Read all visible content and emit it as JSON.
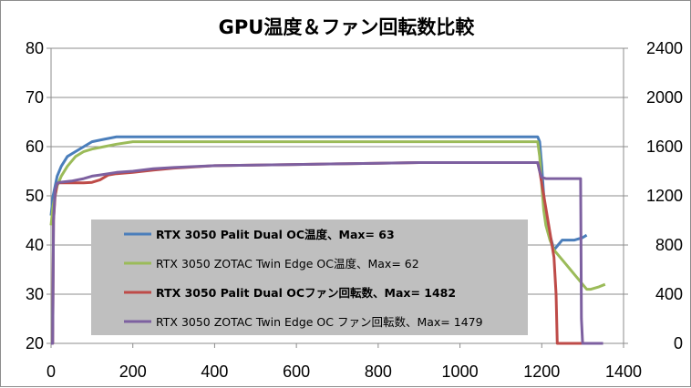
{
  "chart_data": {
    "type": "line",
    "title": "GPU温度＆ファン回転数比較",
    "xlabel": "",
    "ylabel": "",
    "y2label": "",
    "xlim": [
      0,
      1400
    ],
    "ylim": [
      20,
      80
    ],
    "y2lim": [
      0,
      2400
    ],
    "x_ticks": [
      "0",
      "200",
      "400",
      "600",
      "800",
      "1000",
      "1200",
      "1400"
    ],
    "y_ticks": [
      "20",
      "30",
      "40",
      "50",
      "60",
      "70",
      "80"
    ],
    "y2_ticks": [
      "0",
      "400",
      "800",
      "1200",
      "1600",
      "2000",
      "2400"
    ],
    "grid": "horizontal",
    "legend_position": "center-left",
    "series": [
      {
        "name": "RTX 3050 Palit Dual OC温度、Max= 63",
        "axis": "left",
        "color": "#4a7ebb",
        "bold_label": true,
        "points": [
          [
            0,
            46
          ],
          [
            5,
            50
          ],
          [
            10,
            52
          ],
          [
            15,
            54
          ],
          [
            25,
            56
          ],
          [
            40,
            58
          ],
          [
            60,
            59
          ],
          [
            80,
            60
          ],
          [
            100,
            61
          ],
          [
            130,
            61.5
          ],
          [
            160,
            62
          ],
          [
            200,
            62
          ],
          [
            300,
            62
          ],
          [
            400,
            62
          ],
          [
            500,
            62
          ],
          [
            600,
            62
          ],
          [
            700,
            62
          ],
          [
            800,
            62
          ],
          [
            900,
            62
          ],
          [
            1000,
            62
          ],
          [
            1100,
            62
          ],
          [
            1190,
            62
          ],
          [
            1195,
            61
          ],
          [
            1200,
            56
          ],
          [
            1205,
            50
          ],
          [
            1210,
            46
          ],
          [
            1220,
            42
          ],
          [
            1230,
            39
          ],
          [
            1240,
            40
          ],
          [
            1250,
            41
          ],
          [
            1260,
            41
          ],
          [
            1280,
            41
          ],
          [
            1300,
            41.5
          ],
          [
            1310,
            42
          ]
        ]
      },
      {
        "name": "RTX 3050 ZOTAC Twin Edge OC温度、Max= 62",
        "axis": "left",
        "color": "#9bbb59",
        "bold_label": false,
        "points": [
          [
            0,
            44
          ],
          [
            5,
            48
          ],
          [
            10,
            50
          ],
          [
            15,
            52
          ],
          [
            25,
            54
          ],
          [
            40,
            56
          ],
          [
            60,
            58
          ],
          [
            80,
            59
          ],
          [
            100,
            59.5
          ],
          [
            130,
            60
          ],
          [
            160,
            60.5
          ],
          [
            200,
            61
          ],
          [
            300,
            61
          ],
          [
            400,
            61
          ],
          [
            500,
            61
          ],
          [
            600,
            61
          ],
          [
            700,
            61
          ],
          [
            800,
            61
          ],
          [
            900,
            61
          ],
          [
            1000,
            61
          ],
          [
            1100,
            61
          ],
          [
            1190,
            61
          ],
          [
            1195,
            58
          ],
          [
            1200,
            52
          ],
          [
            1205,
            47
          ],
          [
            1210,
            44
          ],
          [
            1220,
            41
          ],
          [
            1230,
            39
          ],
          [
            1240,
            38
          ],
          [
            1250,
            37
          ],
          [
            1260,
            36
          ],
          [
            1270,
            35
          ],
          [
            1280,
            34
          ],
          [
            1290,
            33
          ],
          [
            1300,
            32
          ],
          [
            1310,
            31
          ],
          [
            1320,
            31
          ],
          [
            1340,
            31.5
          ],
          [
            1355,
            32
          ]
        ]
      },
      {
        "name": "RTX 3050 Palit Dual OCファン回転数、Max= 1482",
        "axis": "right",
        "color": "#be4b48",
        "bold_label": true,
        "points": [
          [
            0,
            0
          ],
          [
            4,
            0
          ],
          [
            6,
            1000
          ],
          [
            10,
            1200
          ],
          [
            15,
            1300
          ],
          [
            20,
            1305
          ],
          [
            80,
            1305
          ],
          [
            100,
            1310
          ],
          [
            120,
            1330
          ],
          [
            140,
            1370
          ],
          [
            160,
            1380
          ],
          [
            200,
            1390
          ],
          [
            250,
            1410
          ],
          [
            300,
            1425
          ],
          [
            400,
            1445
          ],
          [
            500,
            1450
          ],
          [
            600,
            1455
          ],
          [
            700,
            1460
          ],
          [
            800,
            1465
          ],
          [
            900,
            1470
          ],
          [
            1000,
            1470
          ],
          [
            1100,
            1470
          ],
          [
            1190,
            1470
          ],
          [
            1195,
            1400
          ],
          [
            1200,
            1300
          ],
          [
            1210,
            1100
          ],
          [
            1220,
            900
          ],
          [
            1230,
            700
          ],
          [
            1235,
            400
          ],
          [
            1238,
            0
          ],
          [
            1300,
            0
          ]
        ]
      },
      {
        "name": "RTX 3050 ZOTAC Twin Edge OC ファン回転数、Max= 1479",
        "axis": "right",
        "color": "#7d60a0",
        "bold_label": false,
        "points": [
          [
            0,
            0
          ],
          [
            4,
            0
          ],
          [
            6,
            1000
          ],
          [
            10,
            1250
          ],
          [
            15,
            1300
          ],
          [
            20,
            1310
          ],
          [
            50,
            1320
          ],
          [
            80,
            1340
          ],
          [
            100,
            1360
          ],
          [
            120,
            1370
          ],
          [
            140,
            1380
          ],
          [
            160,
            1390
          ],
          [
            200,
            1400
          ],
          [
            250,
            1420
          ],
          [
            300,
            1430
          ],
          [
            400,
            1445
          ],
          [
            500,
            1450
          ],
          [
            600,
            1455
          ],
          [
            700,
            1460
          ],
          [
            800,
            1465
          ],
          [
            900,
            1470
          ],
          [
            1000,
            1470
          ],
          [
            1100,
            1470
          ],
          [
            1190,
            1470
          ],
          [
            1195,
            1400
          ],
          [
            1200,
            1350
          ],
          [
            1210,
            1340
          ],
          [
            1250,
            1340
          ],
          [
            1290,
            1340
          ],
          [
            1295,
            1340
          ],
          [
            1297,
            200
          ],
          [
            1300,
            0
          ],
          [
            1350,
            0
          ]
        ]
      }
    ]
  }
}
